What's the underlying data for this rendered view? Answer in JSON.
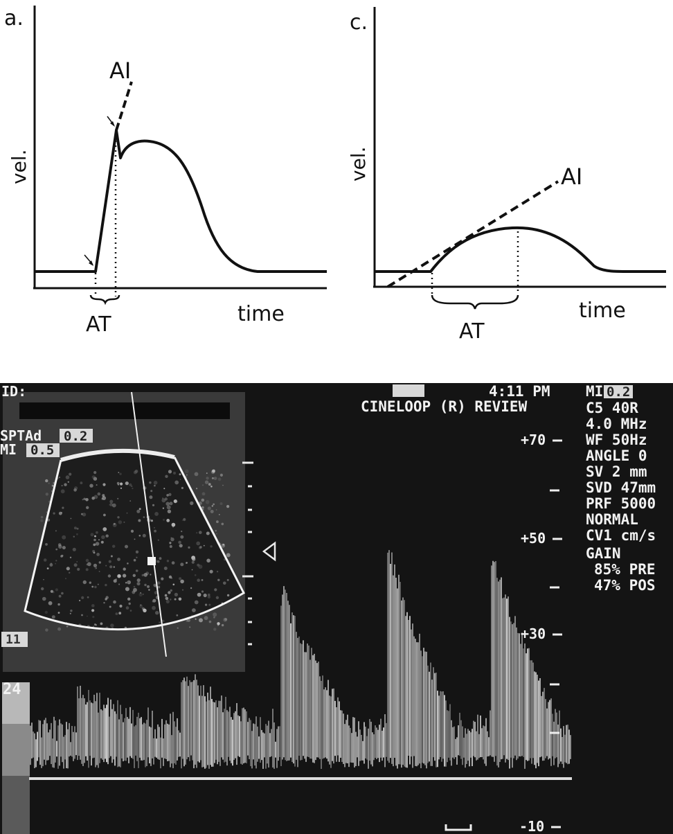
{
  "panel_a": {
    "label": "a.",
    "y_axis": "vel.",
    "x_axis": "time",
    "ai": "AI",
    "at": "AT"
  },
  "panel_c": {
    "label": "c.",
    "y_axis": "vel.",
    "x_axis": "time",
    "ai": "AI",
    "at": "AT"
  },
  "ultrasound": {
    "id_label": "ID:",
    "time": "4:11 PM",
    "mode": "CINELOOP (R) REVIEW",
    "spta_label": "SPTAd",
    "spta_value": "0.2",
    "mi_label": "MI",
    "mi_value": "0.5",
    "depth_marker": "11",
    "gain_marker": "24",
    "settings": [
      {
        "label": "MI",
        "value": "0.2"
      },
      {
        "text": "C5 40R"
      },
      {
        "text": "4.0 MHz"
      },
      {
        "text": "WF  50Hz"
      },
      {
        "text": "ANGLE  0"
      },
      {
        "text": "SV 2  mm"
      },
      {
        "text": "SVD 47mm"
      },
      {
        "text": "PRF 5000"
      },
      {
        "text": "NORMAL"
      },
      {
        "text": "CV1 cm/s"
      }
    ],
    "gain": {
      "title": "GAIN",
      "pre": "85% PRE",
      "pos": "47% POS"
    },
    "velocity_scale": [
      "+70",
      "+50",
      "+30",
      "-10"
    ],
    "colors": {
      "background": "#141414",
      "signal": "#eeeeee"
    }
  }
}
